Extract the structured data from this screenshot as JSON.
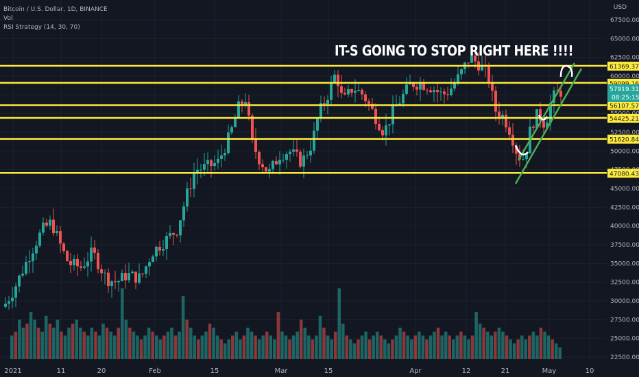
{
  "header": {
    "symbol_title": "Bitcoin / U.S. Dollar, 1D, BINANCE",
    "indicator_vol": "Vol",
    "indicator_rsi": "RSI Strategy (14, 30, 70)",
    "currency": "USD"
  },
  "annotation": "IT-S GOING TO STOP RIGHT HERE !!!!",
  "price_scale": {
    "ticks": [
      "67500.00",
      "65000.00",
      "62500.00",
      "60000.00",
      "57500.00",
      "55000.00",
      "52500.00",
      "50000.00",
      "47500.00",
      "45000.00",
      "42500.00",
      "40000.00",
      "37500.00",
      "35000.00",
      "32500.00",
      "30000.00",
      "27500.00",
      "25000.00",
      "22500.00"
    ],
    "current_price": "57919.31",
    "countdown": "08:25:15"
  },
  "time_axis": {
    "labels": [
      "2021",
      "11",
      "20",
      "Feb",
      "15",
      "Mar",
      "15",
      "Apr",
      "12",
      "21",
      "May",
      "10"
    ]
  },
  "colors": {
    "background": "#131722",
    "up": "#26a69a",
    "down": "#ef5350",
    "level_line": "#ffeb3b",
    "channel": "#4caf50",
    "grid": "#1e222d"
  },
  "chart_data": {
    "type": "candlestick",
    "symbol": "Bitcoin / U.S. Dollar",
    "interval": "1D",
    "exchange": "BINANCE",
    "ylim": [
      22000,
      68500
    ],
    "horizontal_levels": [
      61369.37,
      59099.16,
      56107.57,
      54425.21,
      51620.84,
      47080.43
    ],
    "price_path": [
      {
        "x": 5,
        "y": 29200
      },
      {
        "x": 20,
        "y": 31500
      },
      {
        "x": 45,
        "y": 36500
      },
      {
        "x": 62,
        "y": 39500
      },
      {
        "x": 75,
        "y": 40500
      },
      {
        "x": 90,
        "y": 37000
      },
      {
        "x": 100,
        "y": 35000
      },
      {
        "x": 118,
        "y": 34500
      },
      {
        "x": 135,
        "y": 36500
      },
      {
        "x": 155,
        "y": 33000
      },
      {
        "x": 170,
        "y": 32500
      },
      {
        "x": 185,
        "y": 33500
      },
      {
        "x": 205,
        "y": 33000
      },
      {
        "x": 222,
        "y": 36500
      },
      {
        "x": 240,
        "y": 38000
      },
      {
        "x": 258,
        "y": 39500
      },
      {
        "x": 272,
        "y": 44000
      },
      {
        "x": 285,
        "y": 47500
      },
      {
        "x": 300,
        "y": 47800
      },
      {
        "x": 318,
        "y": 48500
      },
      {
        "x": 335,
        "y": 52000
      },
      {
        "x": 348,
        "y": 55800
      },
      {
        "x": 358,
        "y": 57000
      },
      {
        "x": 368,
        "y": 51000
      },
      {
        "x": 378,
        "y": 49000
      },
      {
        "x": 392,
        "y": 47000
      },
      {
        "x": 408,
        "y": 49500
      },
      {
        "x": 422,
        "y": 50000
      },
      {
        "x": 440,
        "y": 48500
      },
      {
        "x": 455,
        "y": 51000
      },
      {
        "x": 465,
        "y": 55000
      },
      {
        "x": 478,
        "y": 57500
      },
      {
        "x": 490,
        "y": 60500
      },
      {
        "x": 500,
        "y": 56500
      },
      {
        "x": 515,
        "y": 58500
      },
      {
        "x": 530,
        "y": 57500
      },
      {
        "x": 545,
        "y": 55000
      },
      {
        "x": 560,
        "y": 52500
      },
      {
        "x": 572,
        "y": 55000
      },
      {
        "x": 585,
        "y": 57000
      },
      {
        "x": 600,
        "y": 59000
      },
      {
        "x": 615,
        "y": 59000
      },
      {
        "x": 630,
        "y": 58500
      },
      {
        "x": 645,
        "y": 57500
      },
      {
        "x": 655,
        "y": 58000
      },
      {
        "x": 670,
        "y": 60000
      },
      {
        "x": 685,
        "y": 62500
      },
      {
        "x": 700,
        "y": 61500
      },
      {
        "x": 712,
        "y": 60000
      },
      {
        "x": 722,
        "y": 55500
      },
      {
        "x": 735,
        "y": 54500
      },
      {
        "x": 745,
        "y": 52500
      },
      {
        "x": 755,
        "y": 49500
      },
      {
        "x": 765,
        "y": 49000
      },
      {
        "x": 775,
        "y": 53500
      },
      {
        "x": 785,
        "y": 55000
      },
      {
        "x": 795,
        "y": 53500
      },
      {
        "x": 805,
        "y": 57000
      },
      {
        "x": 815,
        "y": 57919
      }
    ],
    "volume_relative": [
      0.3,
      0.35,
      0.5,
      0.4,
      0.45,
      0.6,
      0.5,
      0.4,
      0.35,
      0.55,
      0.45,
      0.4,
      0.5,
      0.35,
      0.3,
      0.4,
      0.45,
      0.5,
      0.4,
      0.35,
      0.3,
      0.4,
      0.35,
      0.3,
      0.45,
      0.4,
      0.35,
      0.3,
      0.4,
      0.9,
      0.5,
      0.4,
      0.35,
      0.3,
      0.25,
      0.3,
      0.4,
      0.35,
      0.3,
      0.25,
      0.3,
      0.35,
      0.4,
      0.3,
      0.35,
      0.8,
      0.5,
      0.4,
      0.3,
      0.25,
      0.3,
      0.35,
      0.45,
      0.4,
      0.3,
      0.25,
      0.2,
      0.25,
      0.3,
      0.35,
      0.25,
      0.3,
      0.4,
      0.35,
      0.3,
      0.25,
      0.3,
      0.35,
      0.3,
      0.25,
      0.6,
      0.35,
      0.3,
      0.25,
      0.3,
      0.35,
      0.5,
      0.4,
      0.3,
      0.25,
      0.3,
      0.55,
      0.4,
      0.3,
      0.25,
      0.35,
      0.9,
      0.45,
      0.3,
      0.25,
      0.2,
      0.25,
      0.3,
      0.35,
      0.25,
      0.3,
      0.35,
      0.3,
      0.25,
      0.2,
      0.25,
      0.3,
      0.4,
      0.35,
      0.3,
      0.25,
      0.3,
      0.35,
      0.3,
      0.25,
      0.3,
      0.35,
      0.4,
      0.3,
      0.35,
      0.3,
      0.25,
      0.3,
      0.35,
      0.3,
      0.25,
      0.3,
      0.6,
      0.45,
      0.4,
      0.35,
      0.3,
      0.35,
      0.4,
      0.35,
      0.3,
      0.25,
      0.2,
      0.25,
      0.3,
      0.25,
      0.3,
      0.35,
      0.3,
      0.4,
      0.35,
      0.3,
      0.25,
      0.2,
      0.15
    ]
  }
}
